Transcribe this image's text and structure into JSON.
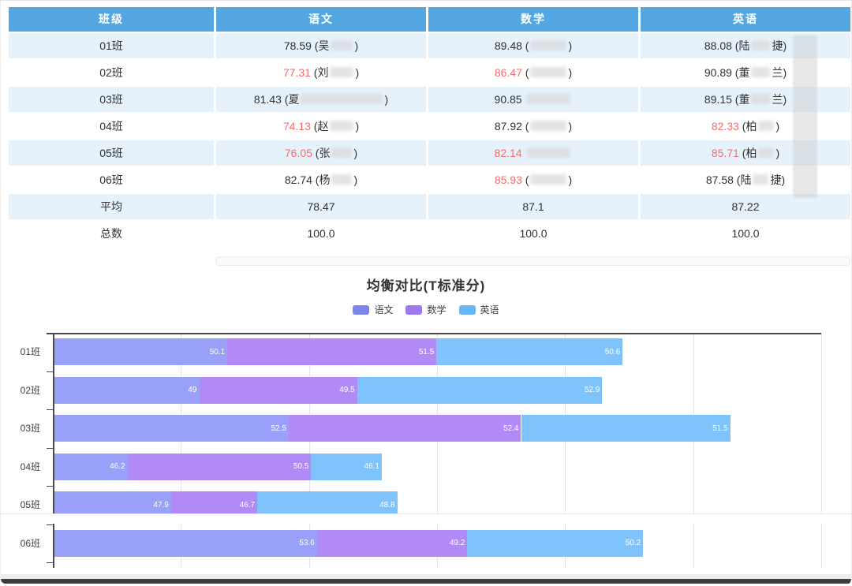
{
  "colors": {
    "header_bg": "#55A7E2",
    "row_shaded_bg": "#E6F2FB",
    "cell_text": "#303133",
    "warning_red": "#F56C6C",
    "chinese_bar": "#98A0FA",
    "math_bar": "#B28AF8",
    "english_bar": "#7EC3FB",
    "chinese_legend": "#7B87E8",
    "math_legend": "#9F79EF",
    "english_legend": "#67B7F7"
  },
  "chart_data": [
    {
      "type": "table",
      "headers": [
        "班级",
        "语文",
        "数学",
        "英语"
      ],
      "rows": [
        {
          "label": "01班",
          "shaded": true,
          "cells": [
            {
              "v": "78.59",
              "red": false,
              "paren": true,
              "pre": "吴",
              "blur": 28,
              "suf": ""
            },
            {
              "v": "89.48",
              "red": false,
              "paren": true,
              "pre": "",
              "blur": 46,
              "suf": ""
            },
            {
              "v": "88.08",
              "red": false,
              "paren": true,
              "pre": "陆",
              "blur": 24,
              "suf": "捷"
            }
          ]
        },
        {
          "label": "02班",
          "shaded": false,
          "cells": [
            {
              "v": "77.31",
              "red": true,
              "paren": true,
              "pre": "刘",
              "blur": 30,
              "suf": ""
            },
            {
              "v": "86.47",
              "red": true,
              "paren": true,
              "pre": "",
              "blur": 46,
              "suf": ""
            },
            {
              "v": "90.89",
              "red": false,
              "paren": true,
              "pre": "董",
              "blur": 24,
              "suf": "兰"
            }
          ]
        },
        {
          "label": "03班",
          "shaded": true,
          "cells": [
            {
              "v": "81.43",
              "red": false,
              "paren": true,
              "pre": "夏",
              "blur": 104,
              "suf": ""
            },
            {
              "v": "90.85",
              "red": false,
              "paren": false,
              "pre": "",
              "blur": 56,
              "suf": ""
            },
            {
              "v": "89.15",
              "red": false,
              "paren": true,
              "pre": "董",
              "blur": 24,
              "suf": "兰"
            }
          ]
        },
        {
          "label": "04班",
          "shaded": false,
          "cells": [
            {
              "v": "74.13",
              "red": true,
              "paren": true,
              "pre": "赵",
              "blur": 30,
              "suf": ""
            },
            {
              "v": "87.92",
              "red": false,
              "paren": true,
              "pre": "",
              "blur": 46,
              "suf": ""
            },
            {
              "v": "82.33",
              "red": true,
              "paren": true,
              "pre": "柏",
              "blur": 20,
              "suf": ""
            }
          ]
        },
        {
          "label": "05班",
          "shaded": true,
          "cells": [
            {
              "v": "76.05",
              "red": true,
              "paren": true,
              "pre": "张",
              "blur": 26,
              "suf": ""
            },
            {
              "v": "82.14",
              "red": true,
              "paren": false,
              "pre": "",
              "blur": 56,
              "suf": ""
            },
            {
              "v": "85.71",
              "red": true,
              "paren": true,
              "pre": "柏",
              "blur": 20,
              "suf": ""
            }
          ]
        },
        {
          "label": "06班",
          "shaded": false,
          "cells": [
            {
              "v": "82.74",
              "red": false,
              "paren": true,
              "pre": "杨",
              "blur": 26,
              "suf": ""
            },
            {
              "v": "85.93",
              "red": true,
              "paren": true,
              "pre": "",
              "blur": 46,
              "suf": ""
            },
            {
              "v": "87.58",
              "red": false,
              "paren": true,
              "pre": "陆",
              "blur": 20,
              "suf": "捷"
            }
          ]
        },
        {
          "label": "平均",
          "shaded": true,
          "cells": [
            {
              "v": "78.47"
            },
            {
              "v": "87.1"
            },
            {
              "v": "87.22"
            }
          ]
        },
        {
          "label": "总数",
          "shaded": false,
          "cells": [
            {
              "v": "100.0"
            },
            {
              "v": "100.0"
            },
            {
              "v": "100.0"
            }
          ]
        }
      ]
    },
    {
      "type": "bar",
      "orientation": "horizontal",
      "stacked": true,
      "title": "均衡对比(T标准分)",
      "categories": [
        "01班",
        "02班",
        "03班",
        "04班",
        "05班",
        "06班"
      ],
      "series": [
        {
          "name": "语文",
          "bar_color": "#98A0FA",
          "legend_color": "#7B87E8",
          "values": [
            50.1,
            49,
            52.5,
            46.2,
            47.9,
            53.6
          ]
        },
        {
          "name": "数学",
          "bar_color": "#B28AF8",
          "legend_color": "#9F79EF",
          "values": [
            51.5,
            49.5,
            52.4,
            50.5,
            46.7,
            49.2
          ]
        },
        {
          "name": "英语",
          "bar_color": "#7EC3FB",
          "legend_color": "#67B7F7",
          "values": [
            50.6,
            52.9,
            51.5,
            46.1,
            48.8,
            50.2
          ]
        }
      ],
      "xlim": [
        130,
        160
      ],
      "x_tick_interval": 5,
      "grid": true,
      "legend_position": "top",
      "value_labels": "inside-end"
    }
  ]
}
